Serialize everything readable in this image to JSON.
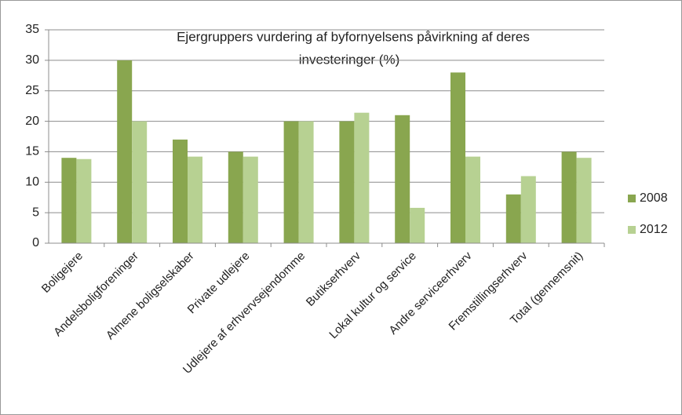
{
  "chart_data": {
    "type": "bar",
    "title": [
      "Ejergruppers  vurdering  af byfornyelsens  påvirkning  af deres",
      "investeringer  (%)"
    ],
    "categories": [
      "Boligejere",
      "Andelsboligforeninger",
      "Almene boligselskaber",
      "Private udlejere",
      "Udlejere af erhvervsejendomme",
      "Butikserhverv",
      "Lokal kultur og service",
      "Andre serviceerhverv",
      "Fremstillingserhverv",
      "Total (gennemsnit)"
    ],
    "series": [
      {
        "name": "2008",
        "color": "#89a64f",
        "values": [
          14,
          30,
          17,
          15,
          20,
          20,
          21,
          28,
          8,
          15
        ]
      },
      {
        "name": "2012",
        "color": "#b7d192",
        "values": [
          13.8,
          20,
          14.2,
          14.2,
          20,
          21.4,
          5.8,
          14.2,
          11,
          14
        ]
      }
    ],
    "ylim": [
      0,
      35
    ],
    "yticks": [
      0,
      5,
      10,
      15,
      20,
      25,
      30,
      35
    ],
    "grid": true,
    "legend": "right"
  }
}
